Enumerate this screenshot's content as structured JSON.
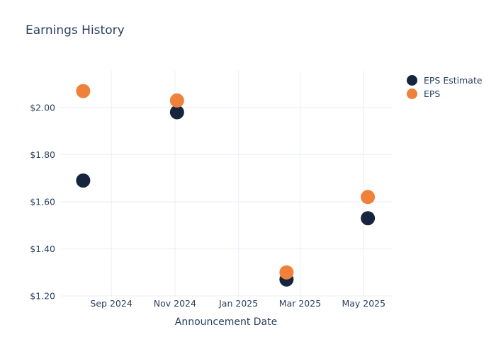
{
  "colors": {
    "background": "#ffffff",
    "text": "#2a3f5f",
    "grid": "#e9edf6",
    "eps_estimate": "#16243e",
    "eps": "#f0813b"
  },
  "chart_data": {
    "type": "scatter",
    "title": "Earnings History",
    "xlabel": "Announcement Date",
    "ylabel": "",
    "grid": true,
    "legend_position": "top-right",
    "marker_size": 20,
    "x_range": [
      "2024-07-14",
      "2025-05-28"
    ],
    "y_range": [
      1.2,
      2.156
    ],
    "x_ticks": [
      {
        "date": "2024-09-01",
        "label": "Sep 2024"
      },
      {
        "date": "2024-11-01",
        "label": "Nov 2024"
      },
      {
        "date": "2025-01-01",
        "label": "Jan 2025"
      },
      {
        "date": "2025-03-01",
        "label": "Mar 2025"
      },
      {
        "date": "2025-05-01",
        "label": "May 2025"
      }
    ],
    "y_ticks": [
      {
        "value": 2.0,
        "label": "$2.00"
      },
      {
        "value": 1.8,
        "label": "$1.80"
      },
      {
        "value": 1.6,
        "label": "$1.60"
      },
      {
        "value": 1.4,
        "label": "$1.40"
      },
      {
        "value": 1.2,
        "label": "$1.20"
      }
    ],
    "series": [
      {
        "name": "EPS Estimate",
        "color": "#16243e",
        "points": [
          {
            "date": "2024-08-05",
            "value": 1.69
          },
          {
            "date": "2024-11-03",
            "value": 1.98
          },
          {
            "date": "2025-02-16",
            "value": 1.27
          },
          {
            "date": "2025-05-05",
            "value": 1.53
          }
        ]
      },
      {
        "name": "EPS",
        "color": "#f0813b",
        "points": [
          {
            "date": "2024-08-05",
            "value": 2.07
          },
          {
            "date": "2024-11-03",
            "value": 2.03
          },
          {
            "date": "2025-02-16",
            "value": 1.3
          },
          {
            "date": "2025-05-05",
            "value": 1.62
          }
        ]
      }
    ]
  }
}
